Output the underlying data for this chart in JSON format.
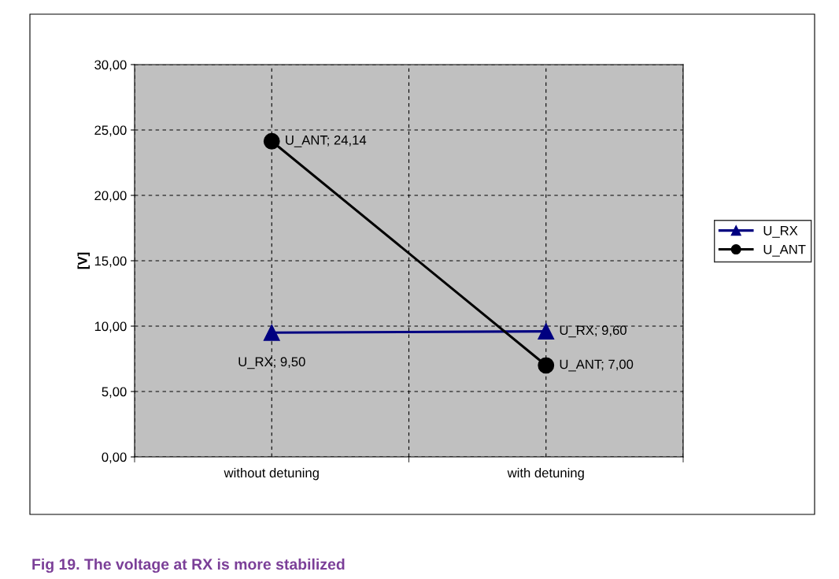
{
  "chart_data": {
    "type": "line",
    "title": "Fig 19. The voltage at RX is more stabilized",
    "ylabel": "[V]",
    "categories": [
      "without detuning",
      "with detuning"
    ],
    "series": [
      {
        "name": "U_RX",
        "color": "#000080",
        "marker": "triangle",
        "values": [
          9.5,
          9.6
        ],
        "value_labels": [
          "U_RX; 9,50",
          "U_RX; 9,60"
        ]
      },
      {
        "name": "U_ANT",
        "color": "#000000",
        "marker": "circle",
        "values": [
          24.14,
          7.0
        ],
        "value_labels": [
          "U_ANT; 24,14",
          "U_ANT; 7,00"
        ]
      }
    ],
    "ylim": [
      0,
      30
    ],
    "yticks": [
      {
        "value": 0,
        "label": "0,00"
      },
      {
        "value": 5,
        "label": "5,00"
      },
      {
        "value": 10,
        "label": "10,00"
      },
      {
        "value": 15,
        "label": "15,00"
      },
      {
        "value": 20,
        "label": "20,00"
      },
      {
        "value": 25,
        "label": "25,00"
      },
      {
        "value": 30,
        "label": "30,00"
      }
    ],
    "grid": true,
    "legend": "right",
    "line_style": "solid"
  }
}
